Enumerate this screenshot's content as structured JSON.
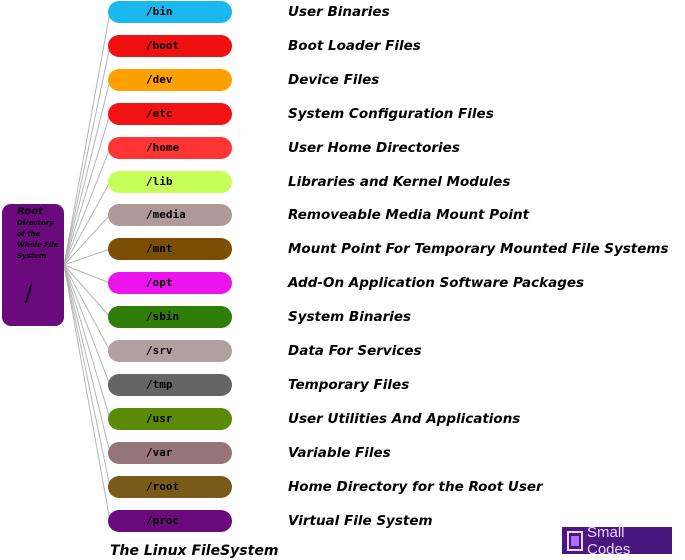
{
  "root": {
    "title": "Root",
    "subtitle": "Directory of the Whole File System",
    "symbol": "/",
    "color": "#6a0a7c"
  },
  "directories": [
    {
      "name": "/bin",
      "description": "User Binaries",
      "color": "#1ab8ee"
    },
    {
      "name": "/boot",
      "description": "Boot Loader Files",
      "color": "#f01010"
    },
    {
      "name": "/dev",
      "description": "Device Files",
      "color": "#ffa000"
    },
    {
      "name": "/etc",
      "description": "System Configuration Files",
      "color": "#f21414"
    },
    {
      "name": "/home",
      "description": "User Home Directories",
      "color": "#ff3535"
    },
    {
      "name": "/lib",
      "description": "Libraries and Kernel Modules",
      "color": "#c6ff5a"
    },
    {
      "name": "/media",
      "description": "Removeable Media Mount Point",
      "color": "#b09a98"
    },
    {
      "name": "/mnt",
      "description": "Mount Point For Temporary Mounted File Systems",
      "color": "#7a4f05"
    },
    {
      "name": "/opt",
      "description": "Add-On Application Software Packages",
      "color": "#ec14ec"
    },
    {
      "name": "/sbin",
      "description": "System Binaries",
      "color": "#2f7c08"
    },
    {
      "name": "/srv",
      "description": "Data For Services",
      "color": "#b2a0a0"
    },
    {
      "name": "/tmp",
      "description": "Temporary Files",
      "color": "#656565"
    },
    {
      "name": "/usr",
      "description": "User Utilities And Applications",
      "color": "#5a8a08"
    },
    {
      "name": "/var",
      "description": "Variable Files",
      "color": "#957575"
    },
    {
      "name": "/root",
      "description": "Home Directory for the Root User",
      "color": "#7a5a18"
    },
    {
      "name": "/proc",
      "description": "Virtual File System",
      "color": "#6a0a7c"
    }
  ],
  "caption": "The Linux FileSystem",
  "logo": {
    "text": "Small Codes",
    "icon": "book-icon"
  }
}
